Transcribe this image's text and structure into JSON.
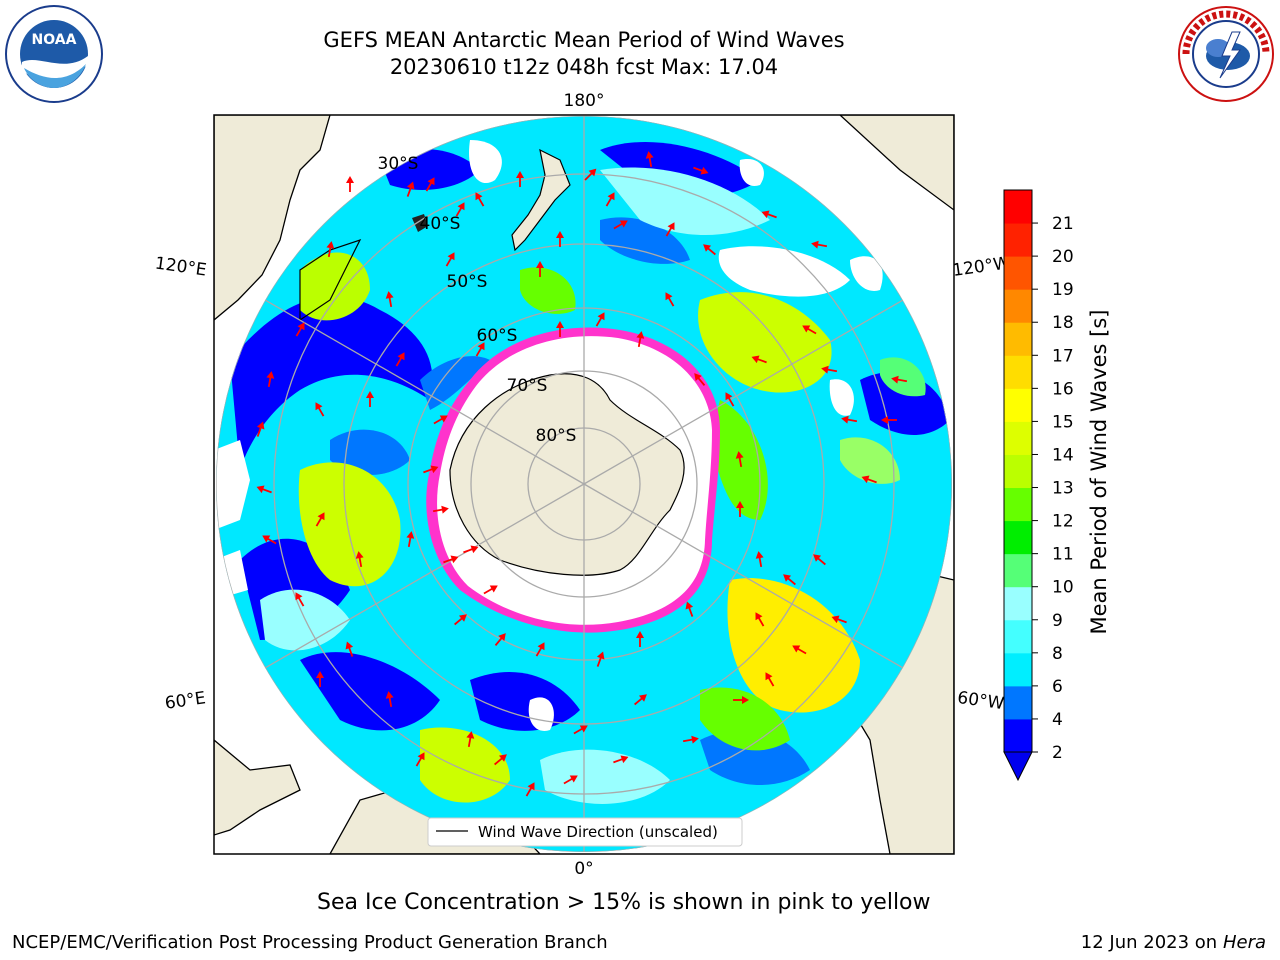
{
  "header": {
    "title_line1": "GEFS MEAN Antarctic Mean Period of Wind Waves",
    "title_line2": "20230610 t12z 048h fcst   Max: 17.04"
  },
  "logos": {
    "left": "noaa-logo",
    "left_text_top": "NATIONAL OCEANIC AND ATMOSPHERIC ADMINISTRATION",
    "left_text_bottom": "U.S. DEPARTMENT OF COMMERCE",
    "left_center": "NOAA",
    "right": "nws-logo",
    "right_text": "NATIONAL WEATHER SERVICE"
  },
  "map": {
    "projection": "south-polar-stereographic",
    "longitude_labels": [
      "180°",
      "120°E",
      "120°W",
      "60°E",
      "60°W",
      "0°"
    ],
    "latitude_labels": [
      "30°S",
      "40°S",
      "50°S",
      "60°S",
      "70°S",
      "80°S"
    ],
    "legend_label": "Wind Wave Direction (unscaled)",
    "arrow_color": "#ff0000",
    "land_color": "#efebd8",
    "ice_colors": [
      "#ff33cc",
      "#ffb030"
    ]
  },
  "colorbar": {
    "label": "Mean Period of Wind Waves [s]",
    "ticks": [
      "2",
      "4",
      "6",
      "8",
      "9",
      "10",
      "11",
      "12",
      "13",
      "14",
      "15",
      "16",
      "17",
      "18",
      "19",
      "20",
      "21"
    ],
    "colors": [
      "#0000ff",
      "#0077ff",
      "#00eeff",
      "#44ffff",
      "#99ffff",
      "#55ff77",
      "#00ee00",
      "#66ff00",
      "#bbff00",
      "#ddff00",
      "#ffff00",
      "#ffdd00",
      "#ffbb00",
      "#ff8800",
      "#ff5500",
      "#ff2200",
      "#ff0000"
    ],
    "extend_color": "#0000ee"
  },
  "caption": "Sea Ice Concentration > 15% is shown in pink to yellow",
  "footer": {
    "left": "NCEP/EMC/Verification Post Processing Product Generation Branch",
    "right_date": "12 Jun 2023 on",
    "right_host": "Hera"
  }
}
